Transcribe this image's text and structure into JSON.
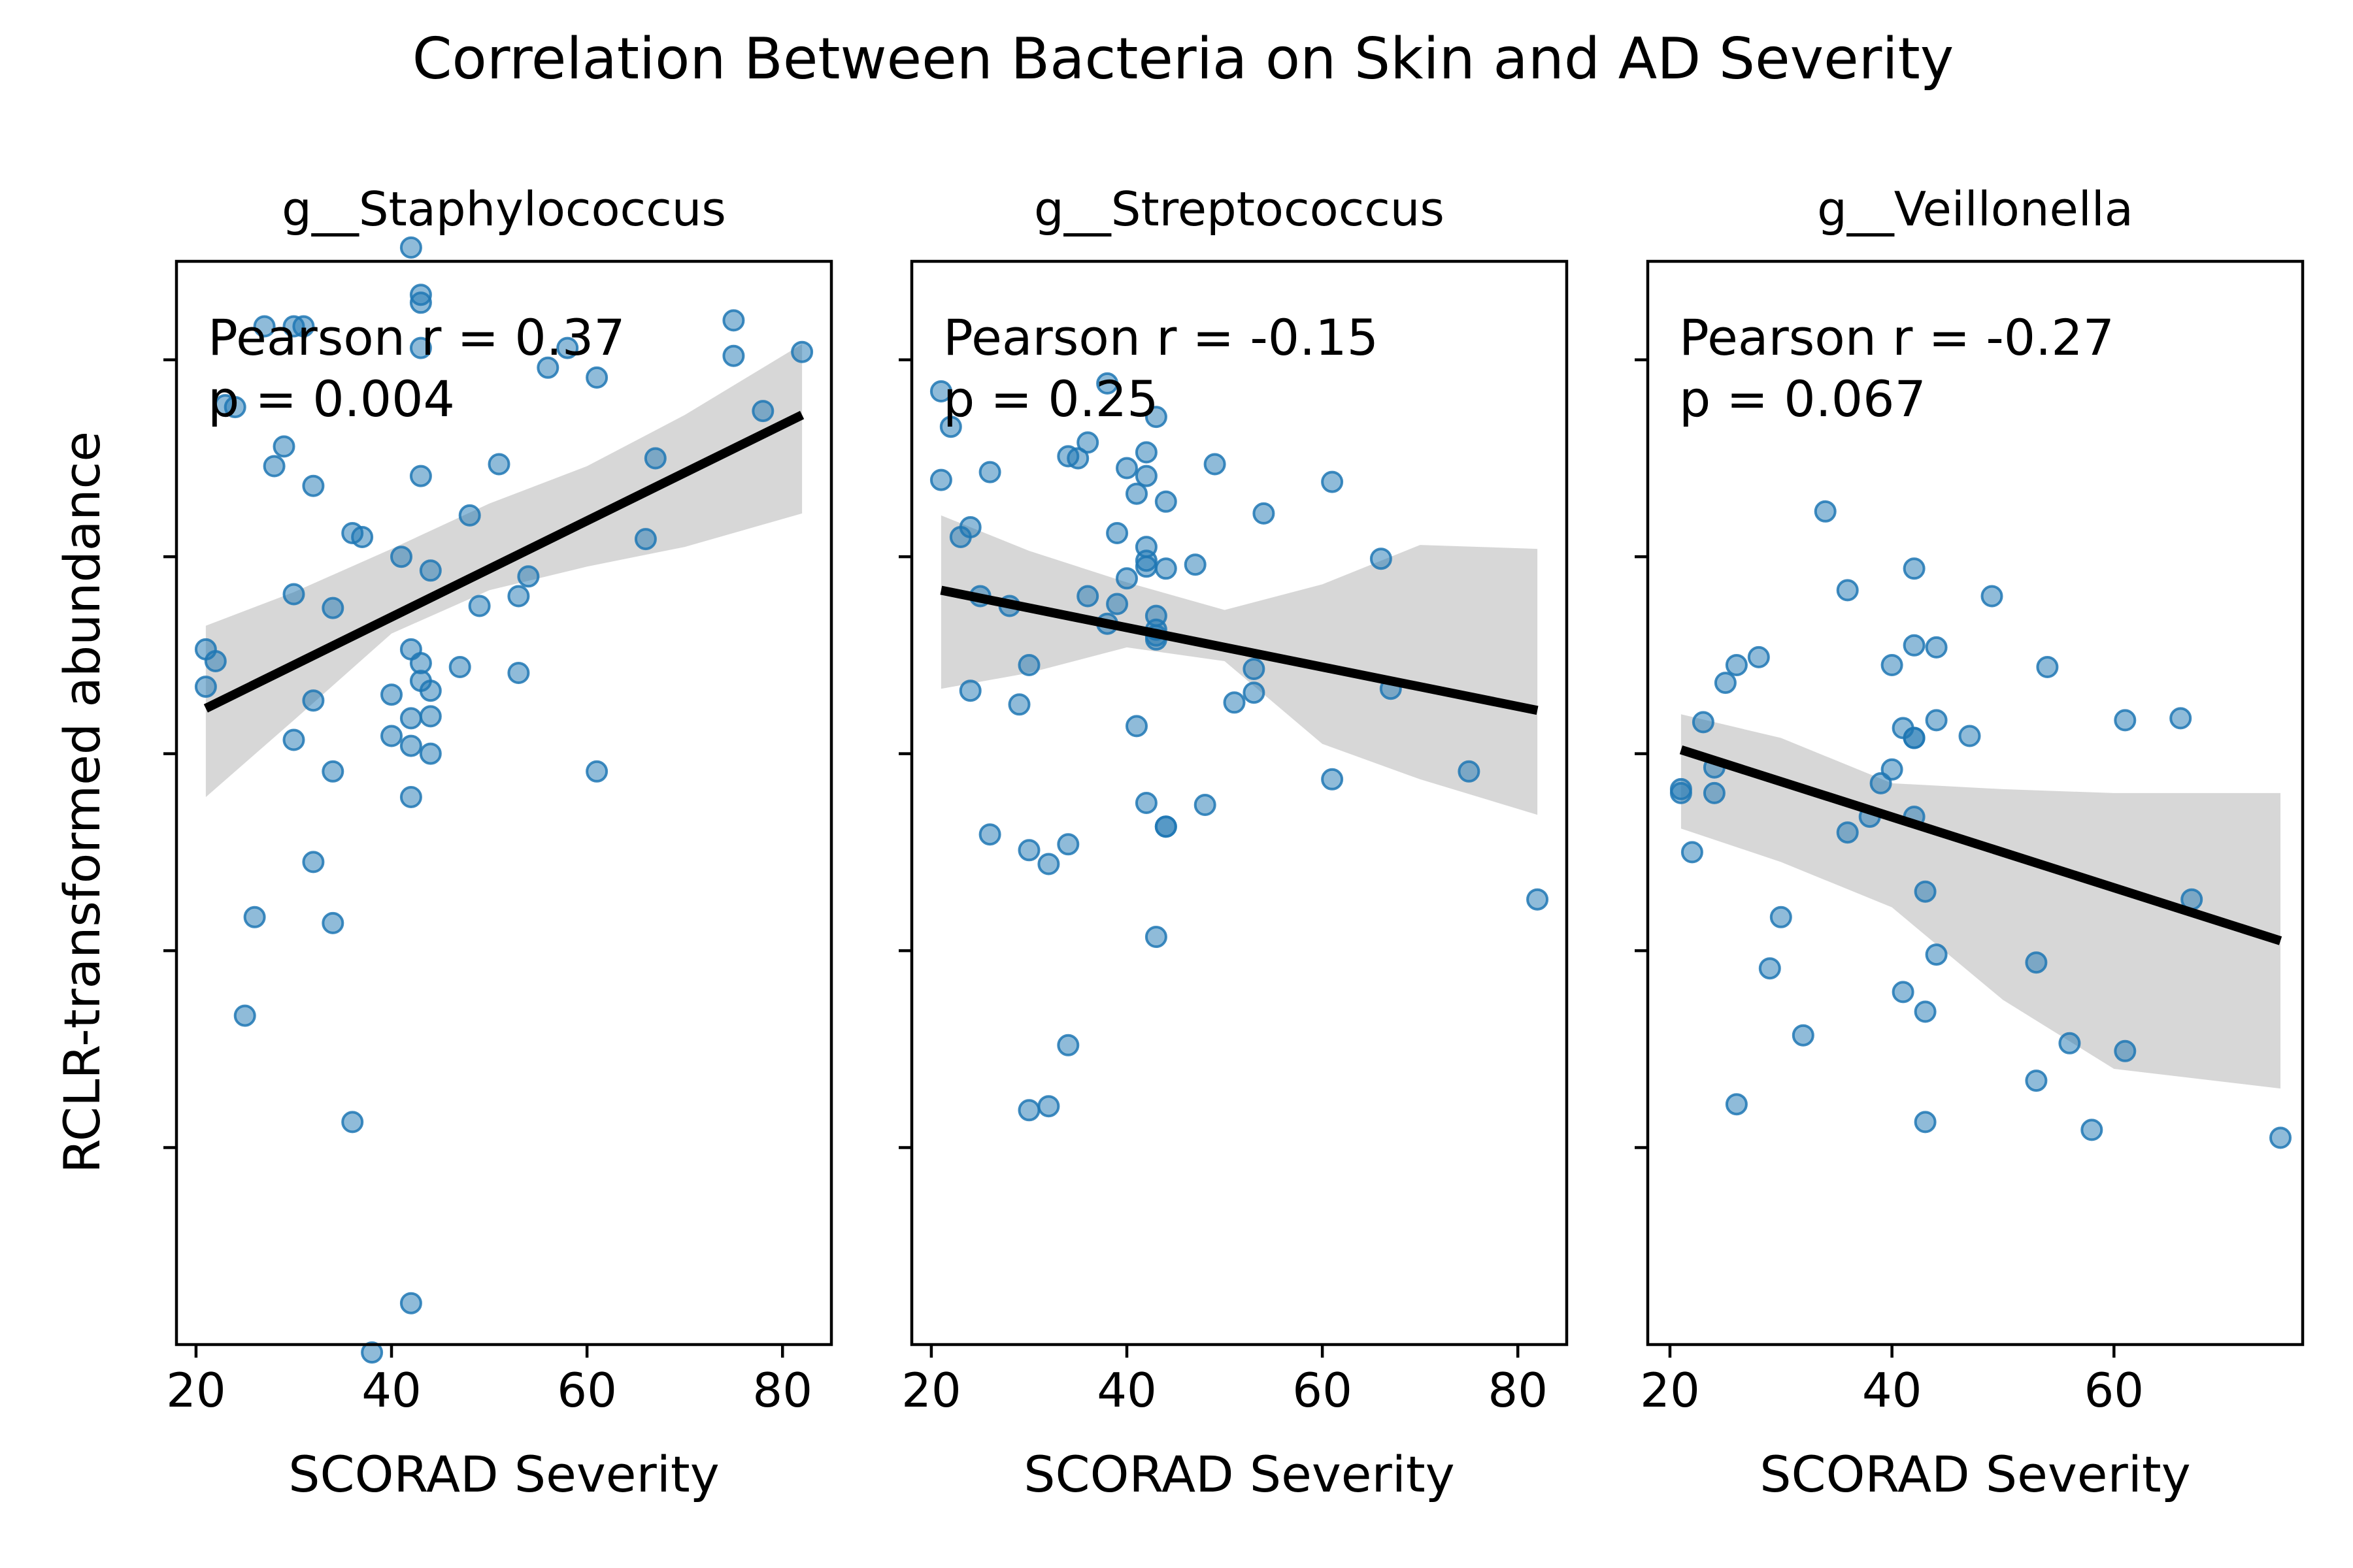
{
  "chart_data": {
    "title": "Correlation Between Bacteria on Skin and AD Severity",
    "type": "scatter",
    "ylabel": "RCLR-transformed abundance",
    "ylim": [
      -3.0,
      2.5
    ],
    "yticks": [
      -2,
      -1,
      0,
      1,
      2
    ],
    "colors": {
      "points": "#1f77b4",
      "line": "#000000",
      "band": "#b0b0b0"
    },
    "panels": [
      {
        "title": "g__Staphylococcus",
        "xlabel": "SCORAD Severity",
        "xlim": [
          18,
          85
        ],
        "xticks": [
          20,
          40,
          60,
          80
        ],
        "stats": [
          "Pearson r = 0.37",
          "p = 0.004"
        ],
        "fit": {
          "x": [
            21,
            82
          ],
          "y": [
            0.23,
            1.72
          ]
        },
        "ci": {
          "x": [
            21,
            30,
            40,
            50,
            60,
            70,
            82
          ],
          "upper": [
            0.65,
            0.82,
            1.04,
            1.27,
            1.46,
            1.72,
            2.08
          ],
          "lower": [
            -0.22,
            0.17,
            0.61,
            0.83,
            0.95,
            1.05,
            1.22
          ]
        },
        "points": {
          "x": [
            21,
            21,
            22,
            23,
            24,
            25,
            26,
            27,
            28,
            29,
            30,
            30,
            30,
            31,
            32,
            32,
            32,
            34,
            34,
            34,
            36,
            36,
            37,
            38,
            40,
            40,
            41,
            42,
            42,
            42,
            42,
            42,
            42,
            43,
            43,
            43,
            43,
            43,
            43,
            44,
            44,
            44,
            44,
            47,
            48,
            49,
            51,
            53,
            53,
            54,
            56,
            58,
            61,
            61,
            66,
            67,
            75,
            75,
            78,
            82
          ],
          "y": [
            0.53,
            0.34,
            0.47,
            1.77,
            1.76,
            -1.33,
            -0.83,
            2.17,
            1.46,
            1.56,
            0.81,
            0.07,
            2.17,
            2.17,
            1.36,
            0.27,
            -0.55,
            0.74,
            -0.09,
            -0.86,
            1.12,
            -1.87,
            1.1,
            -3.04,
            0.3,
            0.09,
            1.0,
            2.57,
            0.53,
            0.18,
            0.04,
            -0.22,
            -2.79,
            2.33,
            2.06,
            2.29,
            0.46,
            0.37,
            1.41,
            0.93,
            0.32,
            0.19,
            0.0,
            0.44,
            1.21,
            0.75,
            1.47,
            0.41,
            0.8,
            0.9,
            1.96,
            2.06,
            1.91,
            -0.09,
            1.09,
            1.5,
            2.2,
            2.02,
            1.74,
            2.04
          ]
        }
      },
      {
        "title": "g__Streptococcus",
        "xlabel": "SCORAD Severity",
        "xlim": [
          18,
          85
        ],
        "xticks": [
          20,
          40,
          60,
          80
        ],
        "stats": [
          "Pearson r = -0.15",
          "p = 0.25"
        ],
        "fit": {
          "x": [
            21,
            82
          ],
          "y": [
            0.83,
            0.22
          ]
        },
        "ci": {
          "x": [
            21,
            30,
            40,
            50,
            60,
            70,
            82
          ],
          "upper": [
            1.21,
            1.03,
            0.87,
            0.73,
            0.86,
            1.06,
            1.04
          ],
          "lower": [
            0.33,
            0.41,
            0.54,
            0.47,
            0.05,
            -0.13,
            -0.31
          ]
        },
        "points": {
          "x": [
            21,
            21,
            22,
            23,
            24,
            24,
            25,
            26,
            26,
            28,
            29,
            30,
            30,
            30,
            32,
            32,
            34,
            34,
            34,
            35,
            36,
            36,
            38,
            38,
            39,
            39,
            40,
            40,
            41,
            41,
            42,
            42,
            42,
            42,
            42,
            42,
            43,
            43,
            43,
            43,
            43,
            43,
            44,
            44,
            44,
            44,
            47,
            48,
            49,
            51,
            53,
            53,
            54,
            61,
            61,
            66,
            67,
            75,
            82
          ],
          "y": [
            1.84,
            1.39,
            1.66,
            1.1,
            1.15,
            0.32,
            0.8,
            1.43,
            -0.41,
            0.75,
            0.25,
            0.45,
            -0.49,
            -1.81,
            -0.56,
            -1.79,
            1.51,
            -0.46,
            -1.48,
            1.5,
            1.58,
            0.8,
            1.88,
            0.66,
            1.12,
            0.76,
            1.45,
            0.89,
            1.32,
            0.14,
            1.41,
            1.05,
            0.98,
            0.95,
            -0.25,
            1.53,
            1.71,
            0.7,
            0.6,
            0.58,
            -0.93,
            0.63,
            1.28,
            0.94,
            -0.37,
            -0.37,
            0.96,
            -0.26,
            1.47,
            0.26,
            0.43,
            0.31,
            1.22,
            1.38,
            -0.13,
            0.99,
            0.33,
            -0.09,
            -0.74
          ]
        }
      },
      {
        "title": "g__Veillonella",
        "xlabel": "SCORAD Severity",
        "xlim": [
          18,
          77
        ],
        "xticks": [
          20,
          40,
          60
        ],
        "stats": [
          "Pearson r = -0.27",
          "p = 0.067"
        ],
        "fit": {
          "x": [
            21,
            75
          ],
          "y": [
            0.02,
            -0.95
          ]
        },
        "ci": {
          "x": [
            21,
            30,
            40,
            50,
            60,
            75
          ],
          "upper": [
            0.2,
            0.08,
            -0.15,
            -0.18,
            -0.2,
            -0.2
          ],
          "lower": [
            -0.38,
            -0.55,
            -0.78,
            -1.25,
            -1.6,
            -1.7
          ]
        },
        "points": {
          "x": [
            21,
            21,
            22,
            23,
            24,
            24,
            25,
            26,
            26,
            28,
            29,
            30,
            32,
            34,
            36,
            36,
            38,
            39,
            40,
            40,
            41,
            41,
            42,
            42,
            42,
            42,
            42,
            43,
            43,
            43,
            44,
            44,
            44,
            47,
            49,
            53,
            53,
            54,
            56,
            58,
            61,
            61,
            66,
            67,
            75
          ],
          "y": [
            -0.2,
            -0.18,
            -0.5,
            0.16,
            -0.07,
            -0.2,
            0.36,
            0.45,
            -1.78,
            0.49,
            -1.09,
            -0.83,
            -1.43,
            1.23,
            0.83,
            -0.4,
            -0.32,
            -0.15,
            -0.08,
            0.45,
            0.13,
            -1.21,
            0.08,
            0.55,
            0.94,
            0.08,
            -0.32,
            -0.7,
            -1.31,
            -1.87,
            0.17,
            -1.02,
            0.54,
            0.09,
            0.8,
            -1.06,
            -1.66,
            0.44,
            -1.47,
            -1.91,
            -1.51,
            0.17,
            0.18,
            -0.74,
            -1.95
          ]
        }
      }
    ]
  }
}
